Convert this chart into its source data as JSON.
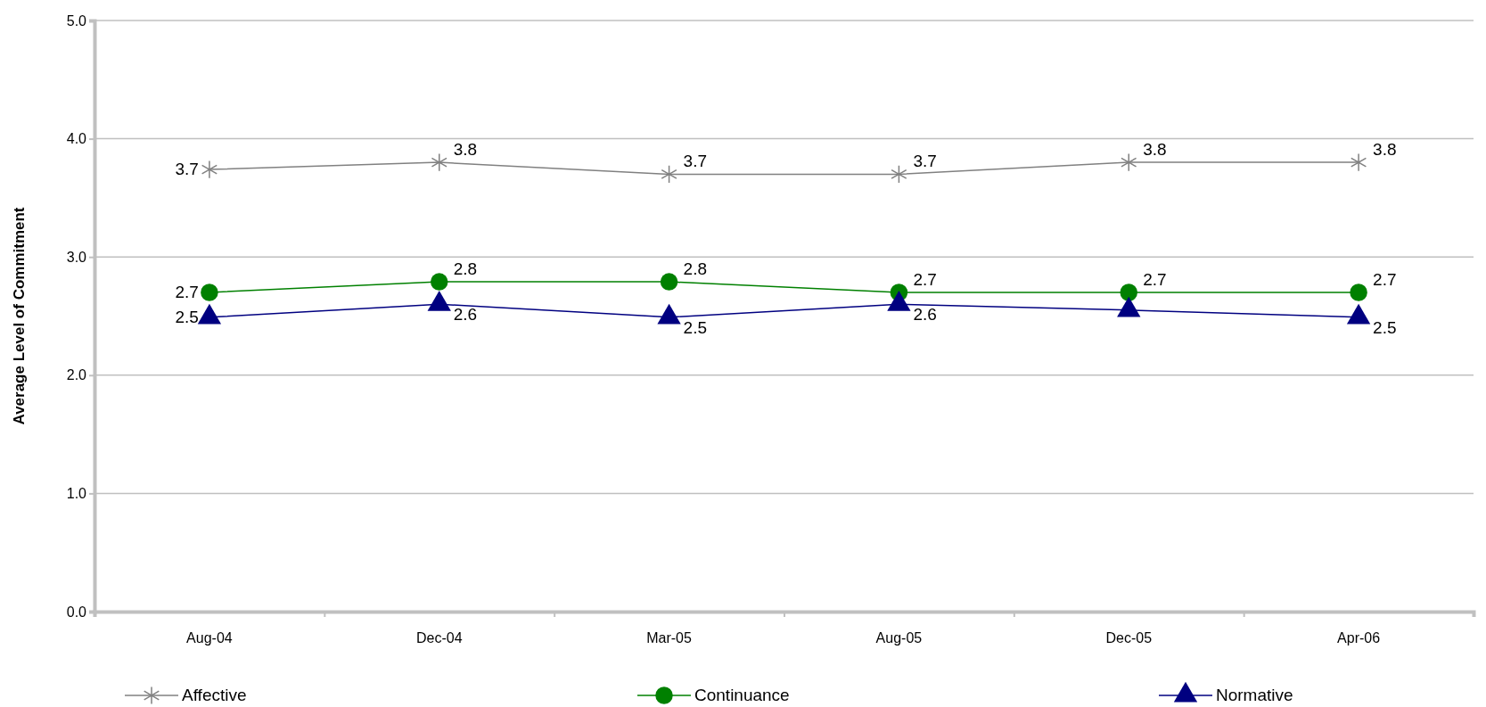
{
  "chart_data": {
    "type": "line",
    "ylabel": "Average Level of Commitment",
    "categories": [
      "Aug-04",
      "Dec-04",
      "Mar-05",
      "Aug-05",
      "Dec-05",
      "Apr-06"
    ],
    "ylim": [
      0,
      5
    ],
    "yticks": [
      {
        "value": 0,
        "label": "0.0"
      },
      {
        "value": 1,
        "label": "1.0"
      },
      {
        "value": 2,
        "label": "2.0"
      },
      {
        "value": 3,
        "label": "3.0"
      },
      {
        "value": 4,
        "label": "4.0"
      },
      {
        "value": 5,
        "label": "5.0"
      }
    ],
    "grid": "y",
    "legend": "bottom",
    "series": [
      {
        "name": "Affective",
        "color": "#808080",
        "marker": "cross",
        "values": [
          3.74,
          3.8,
          3.7,
          3.7,
          3.8,
          3.8
        ],
        "value_labels": [
          "3.7",
          "3.8",
          "3.7",
          "3.7",
          "3.8",
          "3.8"
        ]
      },
      {
        "name": "Continuance",
        "color": "#008000",
        "marker": "circle",
        "values": [
          2.7,
          2.79,
          2.79,
          2.7,
          2.7,
          2.7
        ],
        "value_labels": [
          "2.7",
          "2.8",
          "2.8",
          "2.7",
          "2.7",
          "2.7"
        ]
      },
      {
        "name": "Normative",
        "color": "#000080",
        "marker": "triangle",
        "values": [
          2.49,
          2.6,
          2.49,
          2.6,
          2.55,
          2.49
        ],
        "value_labels": [
          "2.5",
          "2.6",
          "2.5",
          "2.6",
          null,
          "2.5"
        ]
      }
    ]
  }
}
